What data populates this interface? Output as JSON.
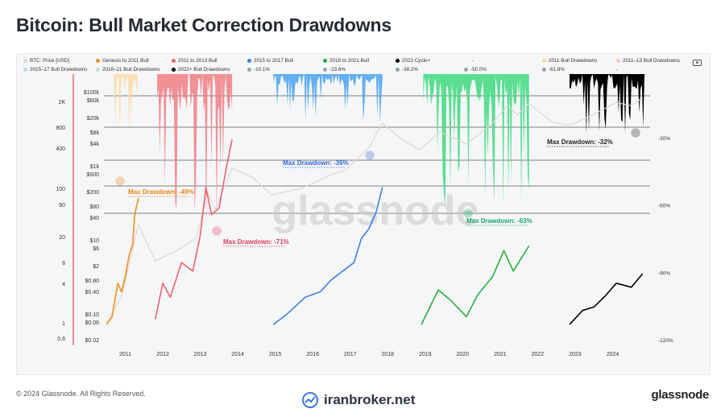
{
  "title": "Bitcoin: Bull Market Correction Drawdowns",
  "footer": {
    "copyright": "© 2024 Glassnode. All Rights Reserved.",
    "center_brand": "iranbroker.net",
    "logo_text": "glassnode"
  },
  "watermark": "glassnode",
  "legend": [
    {
      "label": "BTC: Price [USD]",
      "color": "#d9d9d9"
    },
    {
      "label": "Genesis to 2011 Bull",
      "color": "#f28e1c"
    },
    {
      "label": "2011 to 2013 Bull",
      "color": "#f0626b"
    },
    {
      "label": "2015 to 2017 Bull",
      "color": "#3f7fe0"
    },
    {
      "label": "2018 to 2021 Bull",
      "color": "#27ae3f"
    },
    {
      "label": "2022 Cycle+",
      "color": "#000000"
    },
    {
      "label": "-",
      "color": "#9aa0a6"
    },
    {
      "label": "2011 Bull Drawdowns",
      "color": "#fbd9a6"
    },
    {
      "label": "2011–13 Bull Drawdowns",
      "color": "#f9c7c9"
    },
    {
      "label": "2015–17 Bull Drawdowns",
      "color": "#b9d9f5"
    },
    {
      "label": "2018–21 Bull Drawdowns",
      "color": "#bfe8c6"
    },
    {
      "label": "2022+ Bull Drawdowns",
      "color": "#000000"
    },
    {
      "label": "-10.1%",
      "color": "#9aa0a6"
    },
    {
      "label": "-23.6%",
      "color": "#9aa0a6"
    },
    {
      "label": "-38.2%",
      "color": "#9aa0a6"
    },
    {
      "label": "-50.0%",
      "color": "#9aa0a6"
    },
    {
      "label": "-61.8%",
      "color": "#9aa0a6"
    },
    {
      "label": "-",
      "color": "#9aa0a6"
    }
  ],
  "chart_data": {
    "type": "line",
    "title": "Bitcoin: Bull Market Correction Drawdowns",
    "x_ticks": [
      "2011",
      "2012",
      "2013",
      "2014",
      "2015",
      "2016",
      "2017",
      "2018",
      "2019",
      "2020",
      "2021",
      "2022",
      "2023",
      "2024"
    ],
    "y_left_outer_ticks": [
      "2K",
      "800",
      "400",
      "100",
      "60",
      "20",
      "8",
      "4",
      "1",
      "0.6"
    ],
    "y_left_inner_ticks": [
      "$100k",
      "$60k",
      "$20k",
      "$8k",
      "$4k",
      "$1k",
      "$600",
      "$200",
      "$80",
      "$40",
      "$10",
      "$6",
      "$2",
      "$0.80",
      "$0.40",
      "$0.10",
      "$0.06",
      "$0.02"
    ],
    "y_right_ticks": [
      "-30%",
      "-60%",
      "-90%",
      "-120%"
    ],
    "fib_levels_pct": [
      -10.1,
      -23.6,
      -38.2,
      -50.0,
      -61.8
    ],
    "scale": "log",
    "series": [
      {
        "name": "BTC: Price [USD]",
        "color": "#d9d9d9",
        "points": [
          [
            2010.6,
            0.06
          ],
          [
            2011.0,
            0.3
          ],
          [
            2011.45,
            30
          ],
          [
            2011.9,
            3
          ],
          [
            2012.5,
            6
          ],
          [
            2013.0,
            13
          ],
          [
            2013.3,
            230
          ],
          [
            2013.5,
            80
          ],
          [
            2013.95,
            1100
          ],
          [
            2014.5,
            600
          ],
          [
            2015.0,
            200
          ],
          [
            2015.8,
            300
          ],
          [
            2016.5,
            650
          ],
          [
            2017.0,
            1000
          ],
          [
            2017.6,
            4000
          ],
          [
            2017.96,
            19000
          ],
          [
            2018.5,
            6500
          ],
          [
            2018.95,
            3500
          ],
          [
            2019.5,
            11000
          ],
          [
            2020.2,
            5000
          ],
          [
            2020.9,
            19000
          ],
          [
            2021.3,
            60000
          ],
          [
            2021.55,
            32000
          ],
          [
            2021.87,
            66000
          ],
          [
            2022.5,
            20000
          ],
          [
            2022.95,
            16500
          ],
          [
            2023.5,
            30000
          ],
          [
            2024.2,
            70000
          ],
          [
            2024.6,
            58000
          ],
          [
            2024.9,
            95000
          ]
        ]
      },
      {
        "name": "Genesis to 2011 Bull",
        "color": "#f28e1c",
        "points": [
          [
            2010.6,
            1.0
          ],
          [
            2010.75,
            1.3
          ],
          [
            2010.9,
            4
          ],
          [
            2011.0,
            3
          ],
          [
            2011.1,
            5
          ],
          [
            2011.2,
            10
          ],
          [
            2011.3,
            15
          ],
          [
            2011.35,
            40
          ],
          [
            2011.45,
            70
          ]
        ]
      },
      {
        "name": "2011 to 2013 Bull",
        "color": "#f0626b",
        "points": [
          [
            2011.9,
            1.2
          ],
          [
            2012.1,
            4
          ],
          [
            2012.3,
            2.5
          ],
          [
            2012.6,
            8
          ],
          [
            2012.9,
            6
          ],
          [
            2013.1,
            20
          ],
          [
            2013.25,
            100
          ],
          [
            2013.4,
            40
          ],
          [
            2013.6,
            50
          ],
          [
            2013.8,
            200
          ],
          [
            2013.95,
            500
          ]
        ]
      },
      {
        "name": "2015 to 2017 Bull",
        "color": "#3f7fe0",
        "points": [
          [
            2015.05,
            1.0
          ],
          [
            2015.4,
            1.4
          ],
          [
            2015.9,
            2.5
          ],
          [
            2016.3,
            3
          ],
          [
            2016.6,
            4.5
          ],
          [
            2016.9,
            6
          ],
          [
            2017.2,
            8
          ],
          [
            2017.4,
            18
          ],
          [
            2017.6,
            25
          ],
          [
            2017.8,
            45
          ],
          [
            2017.96,
            100
          ]
        ]
      },
      {
        "name": "2018 to 2021 Bull",
        "color": "#27ae3f",
        "points": [
          [
            2019.0,
            1.0
          ],
          [
            2019.45,
            3.2
          ],
          [
            2019.8,
            2.2
          ],
          [
            2020.2,
            1.3
          ],
          [
            2020.5,
            2.7
          ],
          [
            2020.9,
            5
          ],
          [
            2021.2,
            12
          ],
          [
            2021.45,
            6
          ],
          [
            2021.7,
            10
          ],
          [
            2021.87,
            14
          ]
        ]
      },
      {
        "name": "2022 Cycle+",
        "color": "#000000",
        "points": [
          [
            2022.95,
            1.0
          ],
          [
            2023.3,
            1.6
          ],
          [
            2023.6,
            1.8
          ],
          [
            2023.9,
            2.6
          ],
          [
            2024.2,
            4
          ],
          [
            2024.6,
            3.5
          ],
          [
            2024.9,
            5.5
          ]
        ]
      }
    ],
    "annotations": [
      {
        "text": "Max Drawdown: -49%",
        "color": "#e8860f"
      },
      {
        "text": "Max Drawdown: -71%",
        "color": "#e23a5c"
      },
      {
        "text": "Max Drawdown: -36%",
        "color": "#3468d6"
      },
      {
        "text": "Max Drawdown: -63%",
        "color": "#1ea86a"
      },
      {
        "text": "Max Drawdown: -32%",
        "color": "#222222"
      }
    ],
    "drawdown_regions": [
      {
        "name": "2011 Bull Drawdowns",
        "color": "#fbd9a6",
        "start": 2010.8,
        "end": 2011.42
      },
      {
        "name": "2011–13 Bull Drawdowns",
        "color": "#f07f85",
        "start": 2011.95,
        "end": 2013.95
      },
      {
        "name": "2015–17 Bull Drawdowns",
        "color": "#4aa3f0",
        "start": 2015.05,
        "end": 2017.96
      },
      {
        "name": "2018–21 Bull Drawdowns",
        "color": "#3fd980",
        "start": 2019.05,
        "end": 2021.87
      },
      {
        "name": "2022+ Bull Drawdowns",
        "color": "#000000",
        "start": 2022.95,
        "end": 2024.95
      }
    ]
  }
}
